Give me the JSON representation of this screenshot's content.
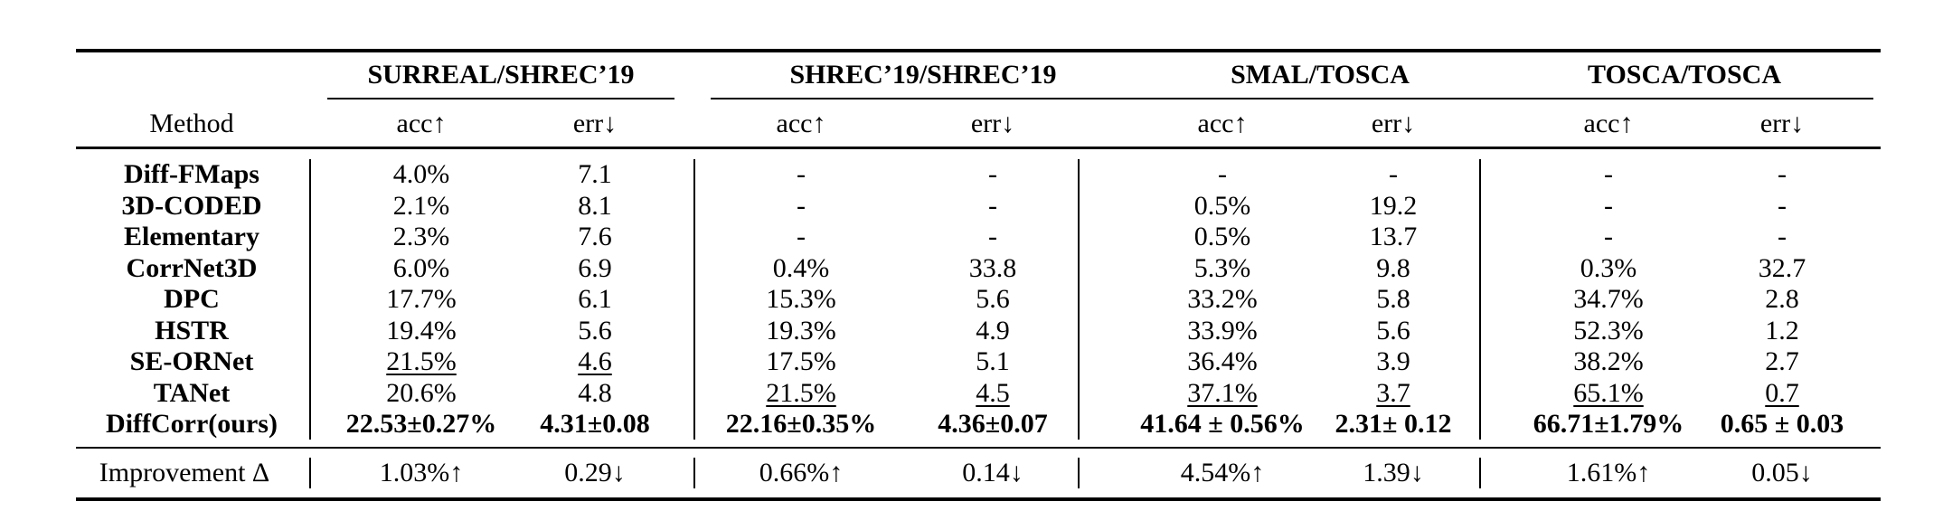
{
  "table": {
    "method_header": "Method",
    "groups": [
      "SURREAL/SHREC’19",
      "SHREC’19/SHREC’19",
      "SMAL/TOSCA",
      "TOSCA/TOSCA"
    ],
    "subheaders": [
      "acc↑",
      "err↓",
      "acc↑",
      "err↓",
      "acc↑",
      "err↓",
      "acc↑",
      "err↓"
    ],
    "rows": [
      {
        "method": "Diff-FMaps",
        "cells": [
          "4.0%",
          "7.1",
          "-",
          "-",
          "-",
          "-",
          "-",
          "-"
        ]
      },
      {
        "method": "3D-CODED",
        "cells": [
          "2.1%",
          "8.1",
          "-",
          "-",
          "0.5%",
          "19.2",
          "-",
          "-"
        ]
      },
      {
        "method": "Elementary",
        "cells": [
          "2.3%",
          "7.6",
          "-",
          "-",
          "0.5%",
          "13.7",
          "-",
          "-"
        ]
      },
      {
        "method": "CorrNet3D",
        "cells": [
          "6.0%",
          "6.9",
          "0.4%",
          "33.8",
          "5.3%",
          "9.8",
          "0.3%",
          "32.7"
        ]
      },
      {
        "method": "DPC",
        "cells": [
          "17.7%",
          "6.1",
          "15.3%",
          "5.6",
          "33.2%",
          "5.8",
          "34.7%",
          "2.8"
        ]
      },
      {
        "method": "HSTR",
        "cells": [
          "19.4%",
          "5.6",
          "19.3%",
          "4.9",
          "33.9%",
          "5.6",
          "52.3%",
          "1.2"
        ]
      },
      {
        "method": "SE-ORNet",
        "cells": [
          "21.5%",
          "4.6",
          "17.5%",
          "5.1",
          "36.4%",
          "3.9",
          "38.2%",
          "2.7"
        ]
      },
      {
        "method": "TANet",
        "cells": [
          "20.6%",
          "4.8",
          "21.5%",
          "4.5",
          "37.1%",
          "3.7",
          "65.1%",
          "0.7"
        ]
      },
      {
        "method": "DiffCorr(ours)",
        "cells": [
          "22.53±0.27%",
          "4.31±0.08",
          "22.16±0.35%",
          "4.36±0.07",
          "41.64 ± 0.56%",
          "2.31± 0.12",
          "66.71±1.79%",
          "0.65 ± 0.03"
        ]
      }
    ],
    "improvement": {
      "label": "Improvement Δ",
      "cells": [
        "1.03%↑",
        "0.29↓",
        "0.66%↑",
        "0.14↓",
        "4.54%↑",
        "1.39↓",
        "1.61%↑",
        "0.05↓"
      ]
    }
  }
}
